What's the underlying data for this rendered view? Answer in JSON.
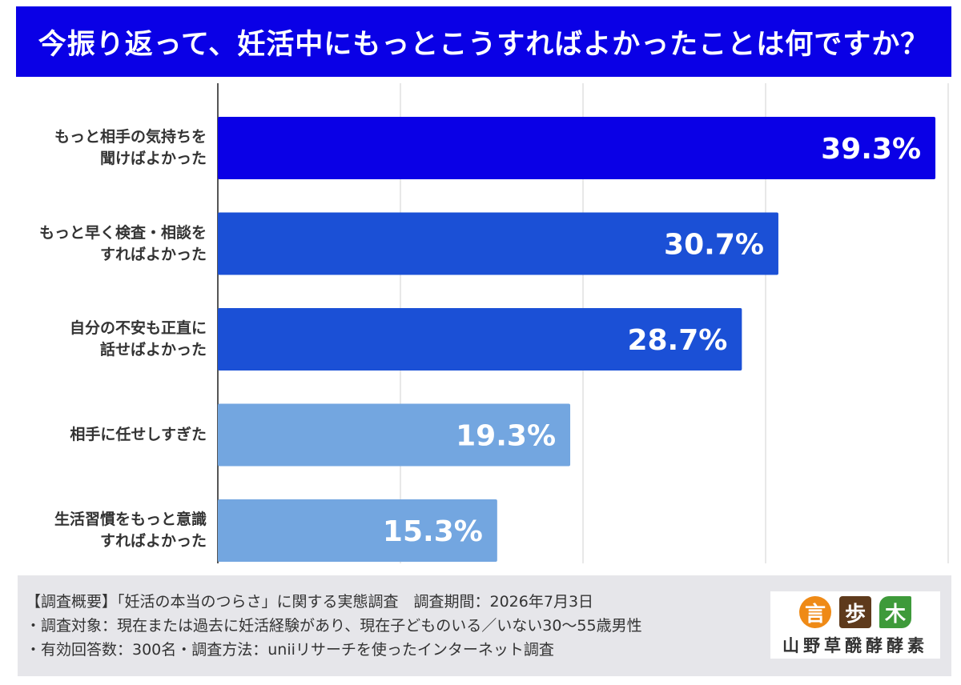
{
  "title": "今振り返って、妊活中にもっとこうすればよかったことは何ですか？",
  "chart_data": {
    "type": "bar",
    "orientation": "horizontal",
    "categories": [
      "もっと相手の気持ちを\n聞けばよかった",
      "もっと早く検査・相談を\nすればよかった",
      "自分の不安も正直に\n話せばよかった",
      "相手に任せしすぎた",
      "生活習慣をもっと意識\nすればよかった"
    ],
    "values": [
      39.3,
      30.7,
      28.7,
      19.3,
      15.3
    ],
    "value_labels": [
      "39.3%",
      "30.7%",
      "28.7%",
      "19.3%",
      "15.3%"
    ],
    "bar_colors": [
      "#0a00e6",
      "#1b50d6",
      "#1b50d6",
      "#73a6e0",
      "#73a6e0"
    ],
    "xlim": [
      0,
      40
    ],
    "grid": true
  },
  "footer": {
    "line1": "【調査概要】「妊活の本当のつらさ」に関する実態調査　調査期間：2026年7月3日",
    "line2": "・調査対象：現在または過去に妊活経験があり、現在子どものいる／いない30〜55歳男性",
    "line3": "・有効回答数：300名・調査方法：uniiリサーチを使ったインターネット調査"
  },
  "logo": {
    "marks": [
      "言",
      "歩",
      "木"
    ],
    "text": "山野草醗酵酵素"
  }
}
